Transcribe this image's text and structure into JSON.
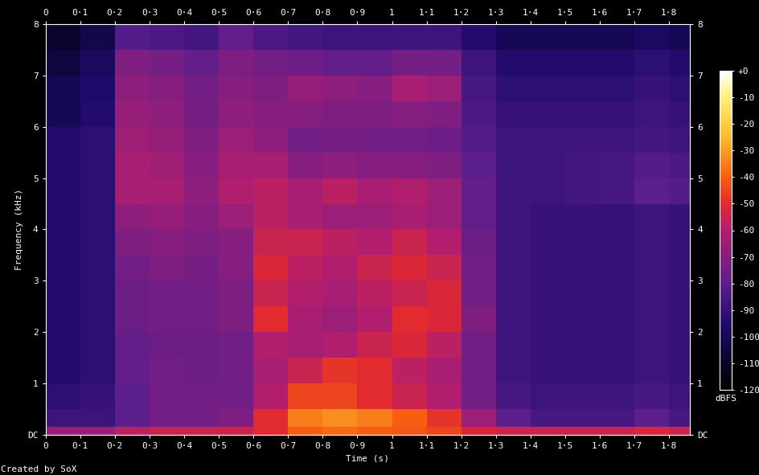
{
  "chart_data": {
    "type": "heatmap",
    "x_label": "Time (s)",
    "y_label": "Frequency (kHz)",
    "caption": "Created by SoX",
    "colorbar_label": "dBFS",
    "xlim": [
      0,
      1.86
    ],
    "ylim": [
      0,
      8
    ],
    "xticks": [
      0,
      {
        "value": 0.1,
        "label": "0·1"
      },
      {
        "value": 0.2,
        "label": "0·2"
      },
      {
        "value": 0.3,
        "label": "0·3"
      },
      {
        "value": 0.4,
        "label": "0·4"
      },
      {
        "value": 0.5,
        "label": "0·5"
      },
      {
        "value": 0.6,
        "label": "0·6"
      },
      {
        "value": 0.7,
        "label": "0·7"
      },
      {
        "value": 0.8,
        "label": "0·8"
      },
      {
        "value": 0.9,
        "label": "0·9"
      },
      1,
      {
        "value": 1.1,
        "label": "1·1"
      },
      {
        "value": 1.2,
        "label": "1·2"
      },
      {
        "value": 1.3,
        "label": "1·3"
      },
      {
        "value": 1.4,
        "label": "1·4"
      },
      {
        "value": 1.5,
        "label": "1·5"
      },
      {
        "value": 1.6,
        "label": "1·6"
      },
      {
        "value": 1.7,
        "label": "1·7"
      },
      {
        "value": 1.8,
        "label": "1·8"
      }
    ],
    "yticks": [
      {
        "value": 0,
        "label": "DC"
      },
      1,
      2,
      3,
      4,
      5,
      6,
      7,
      8
    ],
    "color_range": [
      -120,
      0
    ],
    "color_ticks": [
      {
        "value": 0,
        "label": "+0"
      },
      -10,
      -20,
      -30,
      -40,
      -50,
      -60,
      -70,
      -80,
      -90,
      -100,
      -110,
      -120
    ],
    "x_edges": [
      0,
      0.1,
      0.2,
      0.3,
      0.4,
      0.5,
      0.6,
      0.7,
      0.8,
      0.9,
      1.0,
      1.1,
      1.2,
      1.3,
      1.4,
      1.5,
      1.6,
      1.7,
      1.8,
      1.9
    ],
    "y_edges": [
      0,
      0.15,
      0.5,
      1,
      1.5,
      2,
      2.5,
      3,
      3.5,
      4,
      4.5,
      5,
      5.5,
      6,
      6.5,
      7,
      7.5,
      8
    ],
    "cells": [
      [
        -65,
        -65,
        -58,
        -55,
        -55,
        -55,
        -50,
        -40,
        -38,
        -40,
        -42,
        -45,
        -52,
        -55,
        -55,
        -55,
        -55,
        -52,
        -55
      ],
      [
        -88,
        -88,
        -80,
        -75,
        -75,
        -72,
        -50,
        -35,
        -32,
        -35,
        -40,
        -48,
        -65,
        -80,
        -85,
        -85,
        -85,
        -80,
        -85
      ],
      [
        -92,
        -90,
        -80,
        -75,
        -75,
        -75,
        -60,
        -45,
        -45,
        -50,
        -55,
        -60,
        -75,
        -85,
        -88,
        -88,
        -88,
        -85,
        -88
      ],
      [
        -95,
        -92,
        -78,
        -75,
        -76,
        -75,
        -62,
        -55,
        -48,
        -50,
        -58,
        -62,
        -75,
        -88,
        -90,
        -90,
        -90,
        -88,
        -90
      ],
      [
        -95,
        -92,
        -78,
        -76,
        -76,
        -75,
        -60,
        -62,
        -60,
        -55,
        -52,
        -58,
        -75,
        -88,
        -90,
        -90,
        -90,
        -88,
        -90
      ],
      [
        -95,
        -92,
        -76,
        -75,
        -75,
        -72,
        -50,
        -62,
        -65,
        -60,
        -50,
        -52,
        -72,
        -88,
        -90,
        -90,
        -90,
        -88,
        -90
      ],
      [
        -95,
        -92,
        -76,
        -75,
        -75,
        -72,
        -55,
        -60,
        -62,
        -58,
        -55,
        -52,
        -75,
        -88,
        -90,
        -90,
        -90,
        -88,
        -90
      ],
      [
        -95,
        -92,
        -75,
        -72,
        -74,
        -70,
        -52,
        -58,
        -60,
        -55,
        -52,
        -55,
        -75,
        -88,
        -90,
        -90,
        -90,
        -88,
        -90
      ],
      [
        -95,
        -92,
        -72,
        -70,
        -72,
        -70,
        -55,
        -55,
        -58,
        -60,
        -55,
        -60,
        -76,
        -88,
        -90,
        -90,
        -90,
        -88,
        -90
      ],
      [
        -95,
        -92,
        -68,
        -66,
        -70,
        -65,
        -58,
        -62,
        -65,
        -65,
        -62,
        -65,
        -78,
        -88,
        -90,
        -90,
        -90,
        -88,
        -90
      ],
      [
        -95,
        -92,
        -62,
        -62,
        -68,
        -60,
        -58,
        -62,
        -58,
        -62,
        -60,
        -65,
        -78,
        -88,
        -88,
        -86,
        -85,
        -80,
        -82
      ],
      [
        -95,
        -92,
        -62,
        -64,
        -70,
        -62,
        -62,
        -70,
        -68,
        -70,
        -70,
        -72,
        -80,
        -88,
        -88,
        -86,
        -85,
        -82,
        -84
      ],
      [
        -95,
        -92,
        -64,
        -66,
        -72,
        -65,
        -68,
        -75,
        -74,
        -75,
        -75,
        -76,
        -82,
        -88,
        -88,
        -88,
        -88,
        -86,
        -88
      ],
      [
        -100,
        -95,
        -66,
        -68,
        -74,
        -68,
        -70,
        -70,
        -72,
        -72,
        -70,
        -72,
        -84,
        -90,
        -90,
        -90,
        -90,
        -88,
        -90
      ],
      [
        -100,
        -96,
        -68,
        -70,
        -75,
        -70,
        -72,
        -66,
        -68,
        -70,
        -62,
        -65,
        -85,
        -92,
        -92,
        -92,
        -92,
        -90,
        -92
      ],
      [
        -105,
        -98,
        -72,
        -74,
        -78,
        -72,
        -75,
        -76,
        -78,
        -78,
        -74,
        -75,
        -88,
        -95,
        -95,
        -95,
        -95,
        -92,
        -95
      ],
      [
        -108,
        -102,
        -82,
        -84,
        -86,
        -78,
        -84,
        -86,
        -88,
        -88,
        -88,
        -88,
        -95,
        -100,
        -100,
        -100,
        -100,
        -98,
        -100
      ]
    ]
  }
}
